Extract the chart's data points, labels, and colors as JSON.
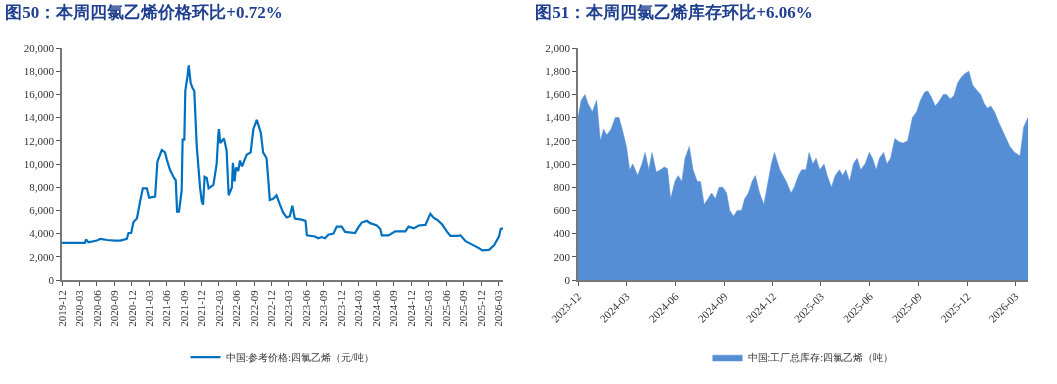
{
  "chart_data": [
    {
      "type": "line",
      "title": "图50：本周四氯乙烯价格环比+0.72%",
      "legend": "bottom",
      "grid": false,
      "marker": "none",
      "line_style": "solid",
      "xlim": [
        "2019-12-01",
        "2026-03-26"
      ],
      "xticks": [
        "2019-12",
        "2020-03",
        "2020-06",
        "2020-09",
        "2020-12",
        "2021-03",
        "2021-06",
        "2021-09",
        "2021-12",
        "2022-03",
        "2022-06",
        "2022-09",
        "2022-12",
        "2023-03",
        "2023-06",
        "2023-09",
        "2023-12",
        "2024-03",
        "2024-06",
        "2024-09",
        "2024-12",
        "2025-03",
        "2025-06",
        "2025-09",
        "2025-12",
        "2026-03"
      ],
      "ylim": [
        0,
        20000
      ],
      "yticks": [
        0,
        {
          "value": 2000,
          "label": "2,000"
        },
        {
          "value": 4000,
          "label": "4,000"
        },
        {
          "value": 6000,
          "label": "6,000"
        },
        {
          "value": 8000,
          "label": "8,000"
        },
        {
          "value": 10000,
          "label": "10,000"
        },
        {
          "value": 12000,
          "label": "12,000"
        },
        {
          "value": 14000,
          "label": "14,000"
        },
        {
          "value": 16000,
          "label": "16,000"
        },
        {
          "value": 18000,
          "label": "18,000"
        },
        {
          "value": 20000,
          "label": "20,000"
        }
      ],
      "series": [
        {
          "name": "中国:参考价格:四氯乙烯（元/吨）",
          "color": "#0070c0",
          "x": [
            "2019-12-01",
            "2020-02-16",
            "2020-03-30",
            "2020-04-05",
            "2020-04-17",
            "2020-06-01",
            "2020-06-19",
            "2020-07-24",
            "2020-09-01",
            "2020-10-01",
            "2020-11-04",
            "2020-11-13",
            "2020-11-27",
            "2020-12-09",
            "2020-12-27",
            "2021-01-13",
            "2021-01-27",
            "2021-02-17",
            "2021-03-01",
            "2021-04-01",
            "2021-04-13",
            "2021-05-06",
            "2021-05-23",
            "2021-06-01",
            "2021-06-18",
            "2021-07-09",
            "2021-07-18",
            "2021-07-25",
            "2021-08-04",
            "2021-08-18",
            "2021-08-23",
            "2021-09-01",
            "2021-09-06",
            "2021-09-17",
            "2021-09-24",
            "2021-10-04",
            "2021-10-15",
            "2021-10-23",
            "2021-11-05",
            "2021-11-22",
            "2021-12-01",
            "2021-12-08",
            "2021-12-16",
            "2021-12-27",
            "2022-01-06",
            "2022-01-31",
            "2022-02-17",
            "2022-02-26",
            "2022-03-01",
            "2022-03-08",
            "2022-03-27",
            "2022-04-10",
            "2022-04-21",
            "2022-05-08",
            "2022-05-13",
            "2022-05-22",
            "2022-05-29",
            "2022-06-10",
            "2022-06-19",
            "2022-06-30",
            "2022-07-24",
            "2022-08-14",
            "2022-08-28",
            "2022-09-15",
            "2022-10-06",
            "2022-10-18",
            "2022-11-05",
            "2022-11-13",
            "2022-11-22",
            "2022-12-10",
            "2022-12-27",
            "2023-01-14",
            "2023-01-31",
            "2023-02-18",
            "2023-03-07",
            "2023-03-20",
            "2023-04-02",
            "2023-05-07",
            "2023-05-28",
            "2023-06-04",
            "2023-07-16",
            "2023-08-03",
            "2023-08-20",
            "2023-09-07",
            "2023-09-24",
            "2023-10-21",
            "2023-11-07",
            "2023-12-03",
            "2023-12-21",
            "2024-02-11",
            "2024-02-29",
            "2024-03-17",
            "2024-04-13",
            "2024-04-30",
            "2024-06-04",
            "2024-06-22",
            "2024-06-30",
            "2024-08-04",
            "2024-09-08",
            "2024-10-31",
            "2024-11-17",
            "2024-12-14",
            "2025-01-09",
            "2025-02-13",
            "2025-03-11",
            "2025-03-29",
            "2025-04-15",
            "2025-05-11",
            "2025-06-07",
            "2025-06-24",
            "2025-07-29",
            "2025-08-16",
            "2025-09-11",
            "2025-10-16",
            "2025-11-20",
            "2025-12-08",
            "2026-01-12",
            "2026-02-07",
            "2026-03-05",
            "2026-03-14",
            "2026-03-26"
          ],
          "values": [
            3200,
            3200,
            3200,
            3500,
            3250,
            3400,
            3550,
            3450,
            3400,
            3400,
            3550,
            4050,
            4050,
            5000,
            5300,
            6800,
            7900,
            7900,
            7100,
            7200,
            10200,
            11200,
            11000,
            10400,
            9500,
            8800,
            8600,
            5900,
            5900,
            7700,
            12100,
            12100,
            16300,
            17500,
            18500,
            17000,
            16500,
            16300,
            11500,
            8000,
            6800,
            6500,
            8900,
            8800,
            7900,
            8200,
            10000,
            12600,
            13000,
            11800,
            12200,
            11200,
            7300,
            8000,
            10100,
            8500,
            9700,
            9400,
            10300,
            9800,
            10800,
            11000,
            13000,
            13800,
            12700,
            11000,
            10500,
            8900,
            6900,
            7000,
            7300,
            6500,
            5800,
            5400,
            5500,
            6400,
            5300,
            5200,
            5100,
            3850,
            3750,
            3600,
            3700,
            3600,
            3900,
            4000,
            4600,
            4600,
            4150,
            4050,
            4550,
            4950,
            5100,
            4900,
            4700,
            4400,
            3850,
            3850,
            4200,
            4200,
            4600,
            4450,
            4700,
            4750,
            5700,
            5350,
            5200,
            4800,
            4150,
            3800,
            3800,
            3850,
            3350,
            3050,
            2750,
            2550,
            2600,
            3000,
            3750,
            4400,
            4450
          ]
        }
      ]
    },
    {
      "type": "area",
      "title": "图51：本周四氯乙烯库存环比+6.06%",
      "legend": "bottom",
      "grid": false,
      "xlim": [
        "2023-12-01",
        "2026-03-25"
      ],
      "xticks": [
        "2023-12",
        "2024-03",
        "2024-06",
        "2024-09",
        "2024-12",
        "2025-03",
        "2025-06",
        "2025-09",
        "2025-12",
        "2026-03"
      ],
      "ylim": [
        0,
        2000
      ],
      "yticks": [
        0,
        200,
        400,
        600,
        800,
        {
          "value": 1000,
          "label": "1,000"
        },
        {
          "value": 1200,
          "label": "1,200"
        },
        {
          "value": 1400,
          "label": "1,400"
        },
        {
          "value": 1600,
          "label": "1,600"
        },
        {
          "value": 1800,
          "label": "1,800"
        },
        {
          "value": 2000,
          "label": "2,000"
        }
      ],
      "series": [
        {
          "name": "中国:工厂总库存:四氯乙烯（吨）",
          "color": "#558ed5",
          "x": [
            "2023-12-01",
            "2023-12-07",
            "2023-12-14",
            "2023-12-20",
            "2023-12-28",
            "2024-01-05",
            "2024-01-12",
            "2024-01-18",
            "2024-01-24",
            "2024-02-01",
            "2024-02-09",
            "2024-02-16",
            "2024-02-22",
            "2024-03-01",
            "2024-03-07",
            "2024-03-13",
            "2024-03-22",
            "2024-03-30",
            "2024-04-05",
            "2024-04-12",
            "2024-04-18",
            "2024-04-26",
            "2024-05-04",
            "2024-05-11",
            "2024-05-17",
            "2024-05-23",
            "2024-05-31",
            "2024-06-06",
            "2024-06-13",
            "2024-06-19",
            "2024-06-27",
            "2024-07-04",
            "2024-07-12",
            "2024-07-18",
            "2024-07-25",
            "2024-08-01",
            "2024-08-08",
            "2024-08-15",
            "2024-08-22",
            "2024-08-29",
            "2024-09-05",
            "2024-09-11",
            "2024-09-18",
            "2024-09-25",
            "2024-10-03",
            "2024-10-09",
            "2024-10-16",
            "2024-10-23",
            "2024-10-29",
            "2024-11-06",
            "2024-11-14",
            "2024-11-20",
            "2024-11-28",
            "2024-12-04",
            "2024-12-14",
            "2024-12-26",
            "2025-01-04",
            "2025-01-10",
            "2025-01-18",
            "2025-01-24",
            "2025-02-01",
            "2025-02-07",
            "2025-02-14",
            "2025-02-20",
            "2025-02-27",
            "2025-03-07",
            "2025-03-13",
            "2025-03-21",
            "2025-03-28",
            "2025-04-05",
            "2025-04-11",
            "2025-04-17",
            "2025-04-24",
            "2025-05-01",
            "2025-05-08",
            "2025-05-15",
            "2025-05-23",
            "2025-05-31",
            "2025-06-06",
            "2025-06-13",
            "2025-06-19",
            "2025-06-27",
            "2025-07-03",
            "2025-07-10",
            "2025-07-18",
            "2025-07-26",
            "2025-08-03",
            "2025-08-11",
            "2025-08-20",
            "2025-08-28",
            "2025-09-04",
            "2025-09-12",
            "2025-09-18",
            "2025-09-24",
            "2025-10-02",
            "2025-10-09",
            "2025-10-17",
            "2025-10-23",
            "2025-10-30",
            "2025-11-06",
            "2025-11-13",
            "2025-11-20",
            "2025-11-27",
            "2025-12-04",
            "2025-12-11",
            "2025-12-20",
            "2025-12-26",
            "2026-01-02",
            "2026-01-08",
            "2026-01-14",
            "2026-01-21",
            "2026-01-30",
            "2026-02-09",
            "2026-02-19",
            "2026-02-28",
            "2026-03-10",
            "2026-03-17",
            "2026-03-25"
          ],
          "values": [
            1400,
            1550,
            1600,
            1520,
            1450,
            1550,
            1200,
            1300,
            1250,
            1300,
            1400,
            1400,
            1300,
            1150,
            950,
            1000,
            900,
            1000,
            1100,
            950,
            1100,
            930,
            950,
            975,
            960,
            700,
            850,
            900,
            850,
            1050,
            1150,
            950,
            850,
            850,
            650,
            700,
            750,
            700,
            800,
            800,
            750,
            600,
            550,
            600,
            600,
            700,
            750,
            850,
            900,
            750,
            650,
            800,
            1000,
            1100,
            950,
            850,
            750,
            800,
            900,
            950,
            950,
            1100,
            1000,
            1050,
            950,
            1000,
            900,
            800,
            900,
            950,
            900,
            950,
            850,
            1000,
            1050,
            950,
            1000,
            1100,
            1050,
            950,
            1050,
            1100,
            1000,
            1050,
            1220,
            1190,
            1180,
            1200,
            1400,
            1450,
            1550,
            1620,
            1630,
            1580,
            1500,
            1540,
            1600,
            1600,
            1560,
            1590,
            1700,
            1750,
            1780,
            1800,
            1680,
            1630,
            1600,
            1520,
            1480,
            1500,
            1450,
            1350,
            1250,
            1150,
            1100,
            1070,
            1320,
            1400
          ]
        }
      ]
    }
  ]
}
